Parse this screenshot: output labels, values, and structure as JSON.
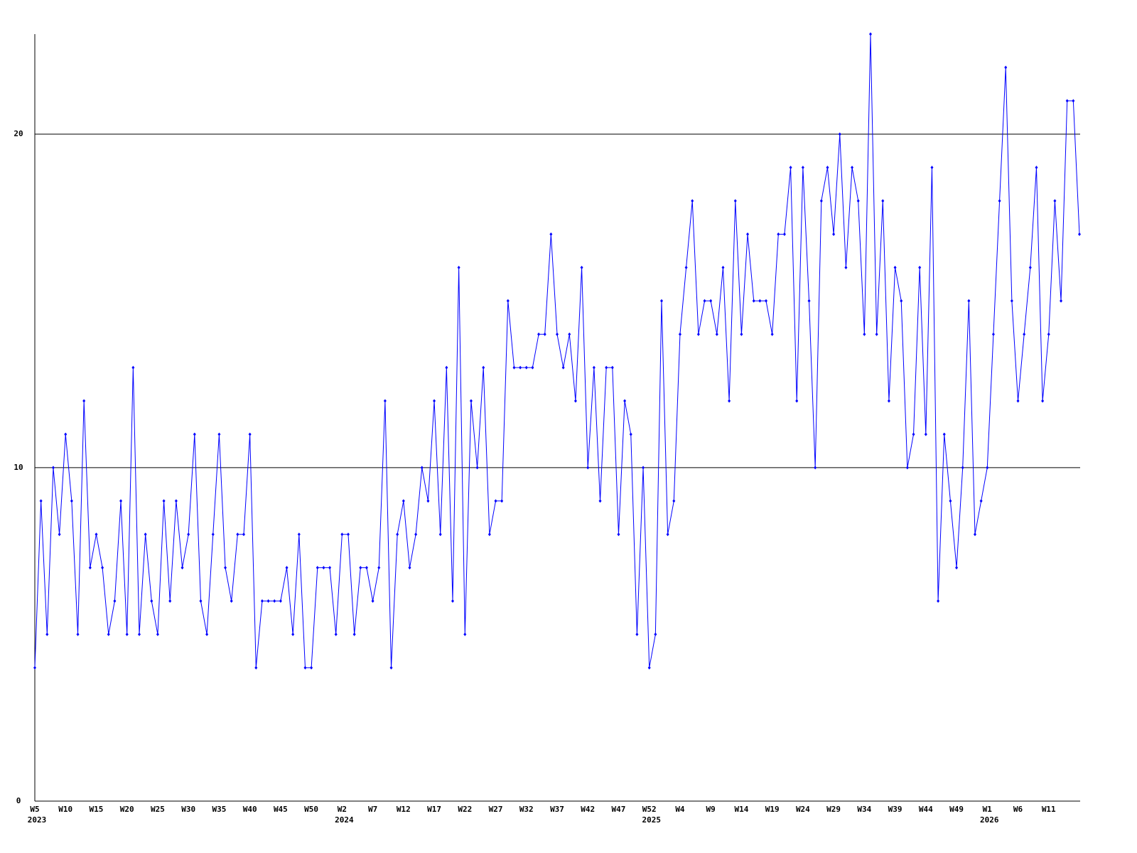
{
  "chart_data": {
    "type": "line",
    "color": "#0000ff",
    "grid": true,
    "ylim": [
      0,
      23
    ],
    "yticks": [
      0,
      10,
      20
    ],
    "categories": [
      "W5",
      null,
      null,
      null,
      null,
      "W10",
      null,
      null,
      null,
      null,
      "W15",
      null,
      null,
      null,
      null,
      "W20",
      null,
      null,
      null,
      null,
      "W25",
      null,
      null,
      null,
      null,
      "W30",
      null,
      null,
      null,
      null,
      "W35",
      null,
      null,
      null,
      null,
      "W40",
      null,
      null,
      null,
      null,
      "W45",
      null,
      null,
      null,
      null,
      "W50",
      null,
      null,
      null,
      null,
      "W2",
      null,
      null,
      null,
      null,
      "W7",
      null,
      null,
      null,
      null,
      "W12",
      null,
      null,
      null,
      null,
      "W17",
      null,
      null,
      null,
      null,
      "W22",
      null,
      null,
      null,
      null,
      "W27",
      null,
      null,
      null,
      null,
      "W32",
      null,
      null,
      null,
      null,
      "W37",
      null,
      null,
      null,
      null,
      "W42",
      null,
      null,
      null,
      null,
      "W47",
      null,
      null,
      null,
      null,
      "W52",
      null,
      null,
      null,
      null,
      "W4",
      null,
      null,
      null,
      null,
      "W9",
      null,
      null,
      null,
      null,
      "W14",
      null,
      null,
      null,
      null,
      "W19",
      null,
      null,
      null,
      null,
      "W24",
      null,
      null,
      null,
      null,
      "W29",
      null,
      null,
      null,
      null,
      "W34",
      null,
      null,
      null,
      null,
      "W39",
      null,
      null,
      null,
      null,
      "W44",
      null,
      null,
      null,
      null,
      "W49",
      null,
      null,
      null,
      null,
      "W1",
      null,
      null,
      null,
      null,
      "W6",
      null,
      null,
      null,
      null,
      "W11",
      null,
      null,
      null,
      null,
      null
    ],
    "category_years": [
      "2023",
      null,
      null,
      null,
      null,
      null,
      null,
      null,
      null,
      null,
      null,
      null,
      null,
      null,
      null,
      null,
      null,
      null,
      null,
      null,
      null,
      null,
      null,
      null,
      null,
      null,
      null,
      null,
      null,
      null,
      null,
      null,
      null,
      null,
      null,
      null,
      null,
      null,
      null,
      null,
      null,
      null,
      null,
      null,
      null,
      null,
      null,
      null,
      null,
      null,
      "2024",
      null,
      null,
      null,
      null,
      null,
      null,
      null,
      null,
      null,
      null,
      null,
      null,
      null,
      null,
      null,
      null,
      null,
      null,
      null,
      null,
      null,
      null,
      null,
      null,
      null,
      null,
      null,
      null,
      null,
      null,
      null,
      null,
      null,
      null,
      null,
      null,
      null,
      null,
      null,
      null,
      null,
      null,
      null,
      null,
      null,
      null,
      null,
      null,
      null,
      "2025",
      null,
      null,
      null,
      null,
      null,
      null,
      null,
      null,
      null,
      null,
      null,
      null,
      null,
      null,
      null,
      null,
      null,
      null,
      null,
      null,
      null,
      null,
      null,
      null,
      null,
      null,
      null,
      null,
      null,
      null,
      null,
      null,
      null,
      null,
      null,
      null,
      null,
      null,
      null,
      null,
      null,
      null,
      null,
      null,
      null,
      null,
      null,
      null,
      null,
      null,
      null,
      null,
      null,
      null,
      "2026",
      null,
      null,
      null,
      null,
      null,
      null,
      null,
      null,
      null,
      null,
      null,
      null,
      null,
      null,
      null
    ],
    "values": [
      4,
      9,
      5,
      10,
      8,
      11,
      9,
      5,
      12,
      7,
      8,
      7,
      5,
      6,
      9,
      5,
      13,
      5,
      8,
      6,
      5,
      9,
      6,
      9,
      7,
      8,
      11,
      6,
      5,
      8,
      11,
      7,
      6,
      8,
      8,
      11,
      4,
      6,
      6,
      6,
      6,
      7,
      5,
      8,
      4,
      4,
      7,
      7,
      7,
      5,
      8,
      8,
      5,
      7,
      7,
      6,
      7,
      12,
      4,
      8,
      9,
      7,
      8,
      10,
      9,
      12,
      8,
      13,
      6,
      16,
      5,
      12,
      10,
      13,
      8,
      9,
      9,
      15,
      13,
      13,
      13,
      13,
      14,
      14,
      17,
      14,
      13,
      14,
      12,
      16,
      10,
      13,
      9,
      13,
      13,
      8,
      12,
      11,
      5,
      10,
      4,
      5,
      15,
      8,
      9,
      14,
      16,
      18,
      14,
      15,
      15,
      14,
      16,
      12,
      18,
      14,
      17,
      15,
      15,
      15,
      14,
      17,
      17,
      19,
      12,
      19,
      15,
      10,
      18,
      19,
      17,
      20,
      16,
      19,
      18,
      14,
      23,
      14,
      18,
      12,
      16,
      15,
      10,
      11,
      16,
      11,
      19,
      6,
      11,
      9,
      7,
      10,
      15,
      8,
      9,
      10,
      14,
      18,
      22,
      15,
      12,
      14,
      16,
      19,
      12,
      14,
      18,
      15,
      21,
      21,
      17
    ]
  }
}
